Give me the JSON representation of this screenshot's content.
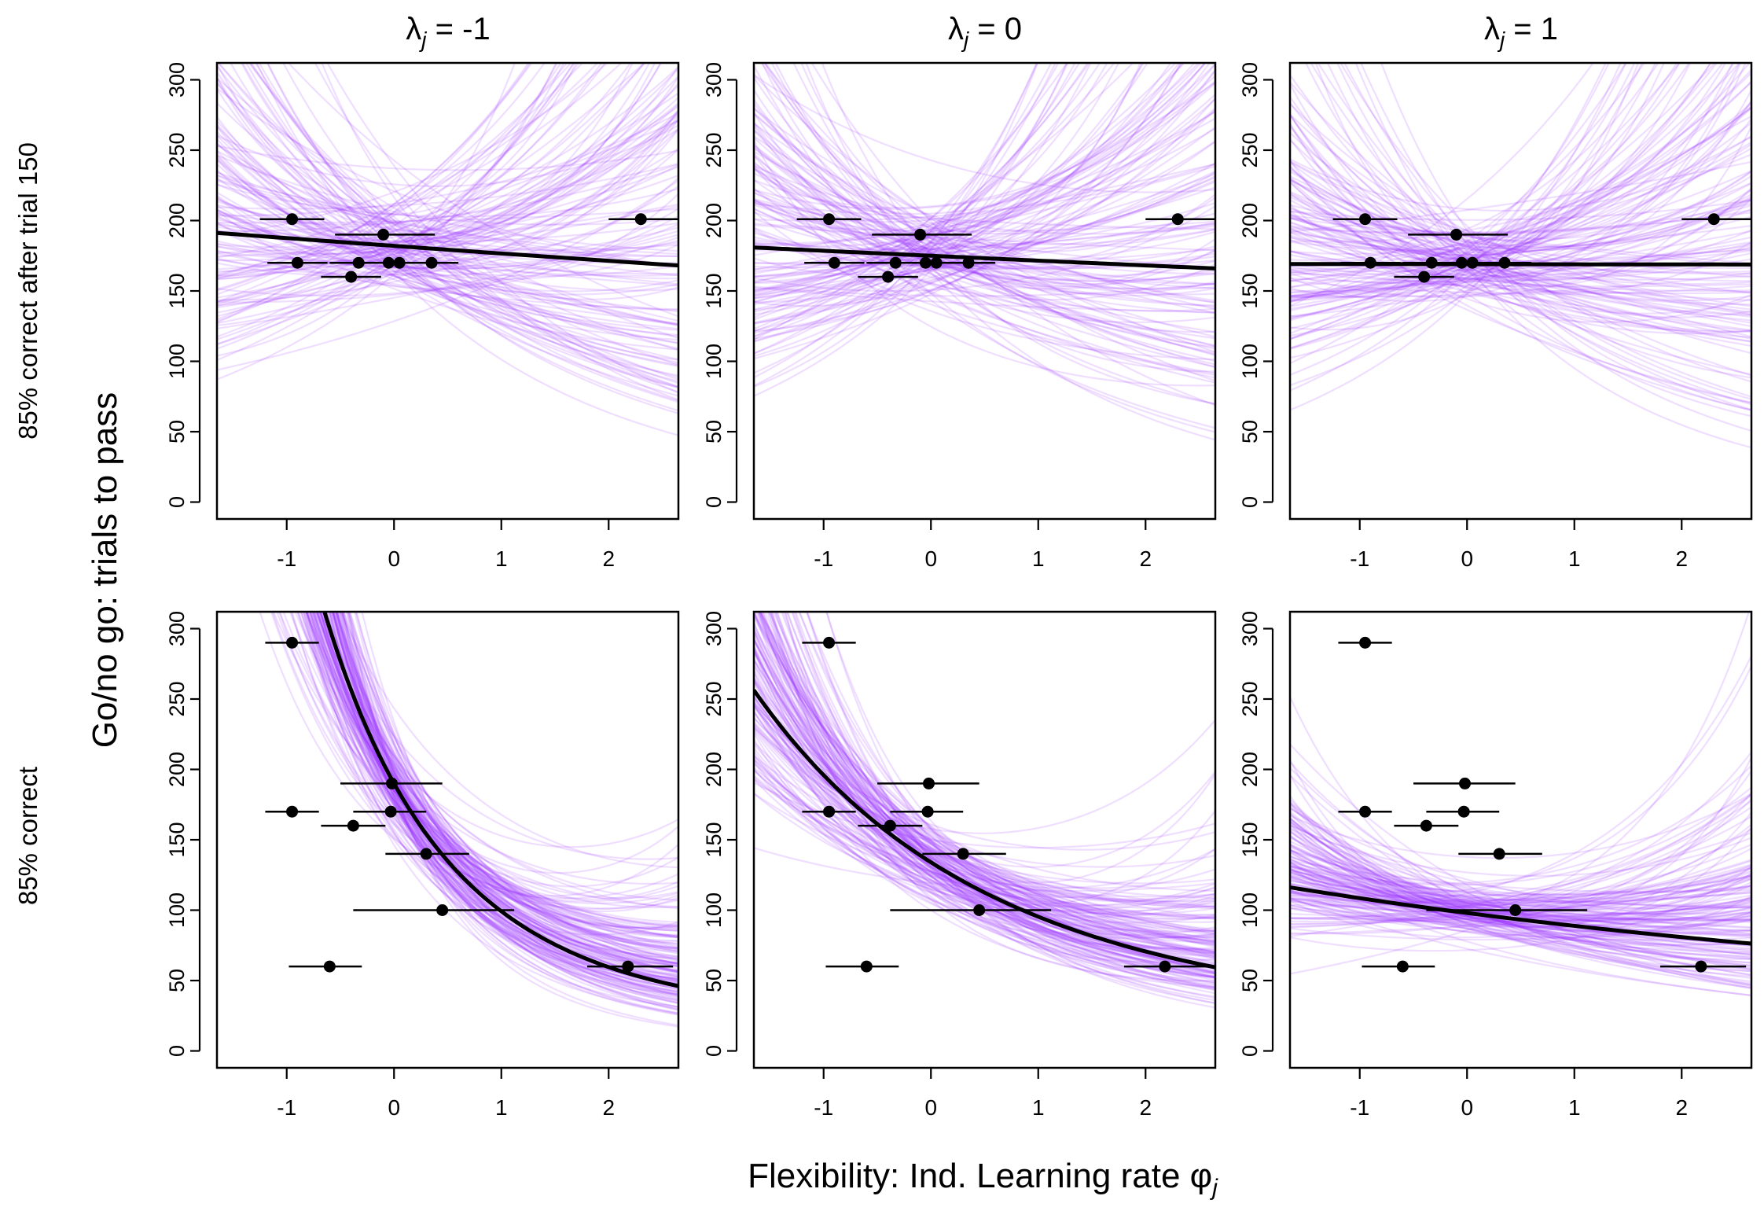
{
  "figure": {
    "ylabel": "Go/no go: trials to pass",
    "xlabel": "Flexibility: Ind. Learning rate",
    "xlabel_symbol": "φ",
    "xlabel_subscript": "j",
    "col_titles": [
      {
        "symbol": "λ",
        "sub": "j",
        "text": " = -1"
      },
      {
        "symbol": "λ",
        "sub": "j",
        "text": " = 0"
      },
      {
        "symbol": "λ",
        "sub": "j",
        "text": " = 1"
      }
    ],
    "row_labels": [
      "85% correct after trial 150",
      "85% correct"
    ]
  },
  "chart_data": {
    "type": "scatter",
    "xlim": [
      -1.65,
      2.65
    ],
    "ylim": [
      -12,
      312
    ],
    "xticks": [
      "-1",
      "0",
      "1",
      "2"
    ],
    "yticks": [
      "0",
      "50",
      "100",
      "150",
      "200",
      "250",
      "300"
    ],
    "grid": false,
    "line_color": "#9B30FF",
    "posterior_curve_count": 150,
    "rows": [
      {
        "label": "85% correct after trial 150",
        "points": [
          {
            "x": -0.95,
            "y": 201,
            "xerr_lo": -1.25,
            "xerr_hi": -0.65
          },
          {
            "x": 2.3,
            "y": 201,
            "xerr_lo": 2.0,
            "xerr_hi": 2.65
          },
          {
            "x": -0.1,
            "y": 190,
            "xerr_lo": -0.55,
            "xerr_hi": 0.38
          },
          {
            "x": -0.9,
            "y": 170,
            "xerr_lo": -1.18,
            "xerr_hi": -0.62
          },
          {
            "x": -0.33,
            "y": 170,
            "xerr_lo": -0.6,
            "xerr_hi": -0.05
          },
          {
            "x": -0.05,
            "y": 170,
            "xerr_lo": -0.3,
            "xerr_hi": 0.2
          },
          {
            "x": 0.05,
            "y": 170,
            "xerr_lo": -0.2,
            "xerr_hi": 0.3
          },
          {
            "x": 0.35,
            "y": 170,
            "xerr_lo": 0.1,
            "xerr_hi": 0.6
          },
          {
            "x": -0.4,
            "y": 160,
            "xerr_lo": -0.68,
            "xerr_hi": -0.12
          }
        ],
        "panels": [
          {
            "lambda": -1,
            "mean": [
              182,
              -0.03,
              0.0
            ]
          },
          {
            "lambda": 0,
            "mean": [
              175,
              -0.02,
              0.0
            ]
          },
          {
            "lambda": 1,
            "mean": [
              169,
              -0.0005,
              0.0
            ]
          }
        ]
      },
      {
        "label": "85% correct",
        "points": [
          {
            "x": -0.95,
            "y": 290,
            "xerr_lo": -1.2,
            "xerr_hi": -0.7
          },
          {
            "x": -0.02,
            "y": 190,
            "xerr_lo": -0.5,
            "xerr_hi": 0.45
          },
          {
            "x": -0.95,
            "y": 170,
            "xerr_lo": -1.2,
            "xerr_hi": -0.7
          },
          {
            "x": -0.03,
            "y": 170,
            "xerr_lo": -0.38,
            "xerr_hi": 0.3
          },
          {
            "x": -0.38,
            "y": 160,
            "xerr_lo": -0.68,
            "xerr_hi": -0.08
          },
          {
            "x": 0.3,
            "y": 140,
            "xerr_lo": -0.08,
            "xerr_hi": 0.7
          },
          {
            "x": 0.45,
            "y": 100,
            "xerr_lo": -0.38,
            "xerr_hi": 1.12
          },
          {
            "x": -0.6,
            "y": 60,
            "xerr_lo": -0.98,
            "xerr_hi": -0.3
          },
          {
            "x": 2.18,
            "y": 60,
            "xerr_lo": 1.8,
            "xerr_hi": 2.6
          }
        ],
        "panels": [
          {
            "lambda": -1,
            "mean": [
              190,
              -0.72,
              0.07
            ]
          },
          {
            "lambda": 0,
            "mean": [
              134,
              -0.36,
              0.02
            ]
          },
          {
            "lambda": 1,
            "mean": [
              98,
              -0.1,
              0.002
            ]
          }
        ]
      }
    ]
  }
}
